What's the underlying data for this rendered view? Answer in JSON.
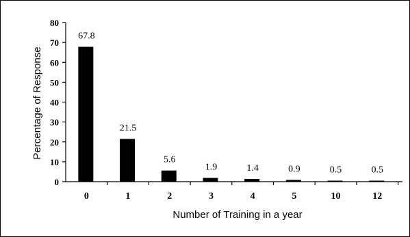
{
  "chart_data": {
    "type": "bar",
    "categories": [
      "0",
      "1",
      "2",
      "3",
      "4",
      "5",
      "10",
      "12"
    ],
    "values": [
      67.8,
      21.5,
      5.6,
      1.9,
      1.4,
      0.9,
      0.5,
      0.5
    ],
    "data_labels": [
      "67.8",
      "21.5",
      "5.6",
      "1.9",
      "1.4",
      "0.9",
      "0.5",
      "0.5"
    ],
    "title": "",
    "xlabel": "Number of Training in a year",
    "ylabel": "Percentage of Response",
    "ylim": [
      0,
      80
    ],
    "yticks": [
      "0",
      "10",
      "20",
      "30",
      "40",
      "50",
      "60",
      "70",
      "80"
    ],
    "bar_color": "#000000",
    "grid": false,
    "legend": "none"
  }
}
